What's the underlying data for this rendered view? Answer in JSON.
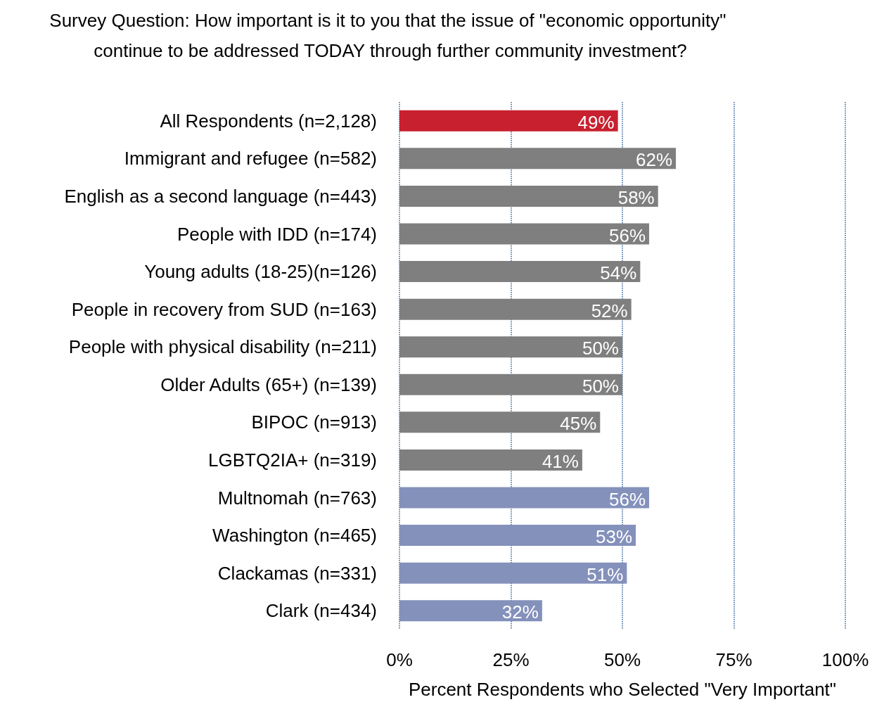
{
  "chart_data": {
    "type": "bar",
    "orientation": "horizontal",
    "title": "Survey Question: How important is it to you that the issue of \"economic opportunity\" continue to be addressed TODAY through further community investment?",
    "xlabel": "Percent Respondents who Selected \"Very Important\"",
    "categories": [
      "All Respondents (n=2,128)",
      "Immigrant and refugee (n=582)",
      "English as a second language (n=443)",
      "People with IDD (n=174)",
      "Young adults (18-25)(n=126)",
      "People in recovery from SUD (n=163)",
      "People with physical disability (n=211)",
      "Older Adults (65+) (n=139)",
      "BIPOC (n=913)",
      "LGBTQ2IA+ (n=319)",
      "Multnomah (n=763)",
      "Washington (n=465)",
      "Clackamas (n=331)",
      "Clark (n=434)"
    ],
    "values": [
      49,
      62,
      58,
      56,
      54,
      52,
      50,
      50,
      45,
      41,
      56,
      53,
      51,
      32
    ],
    "value_labels": [
      "49%",
      "62%",
      "58%",
      "56%",
      "54%",
      "52%",
      "50%",
      "50%",
      "45%",
      "41%",
      "56%",
      "53%",
      "51%",
      "32%"
    ],
    "colors": [
      "#c8202f",
      "#7f7f7f",
      "#7f7f7f",
      "#7f7f7f",
      "#7f7f7f",
      "#7f7f7f",
      "#7f7f7f",
      "#7f7f7f",
      "#7f7f7f",
      "#7f7f7f",
      "#8491bb",
      "#8491bb",
      "#8491bb",
      "#8491bb"
    ],
    "xlim": [
      0,
      100
    ],
    "xticks": [
      {
        "value": 0,
        "label": "0%"
      },
      {
        "value": 25,
        "label": "25%"
      },
      {
        "value": 50,
        "label": "50%"
      },
      {
        "value": 75,
        "label": "75%"
      },
      {
        "value": 100,
        "label": "100%"
      }
    ],
    "grid": "x"
  }
}
